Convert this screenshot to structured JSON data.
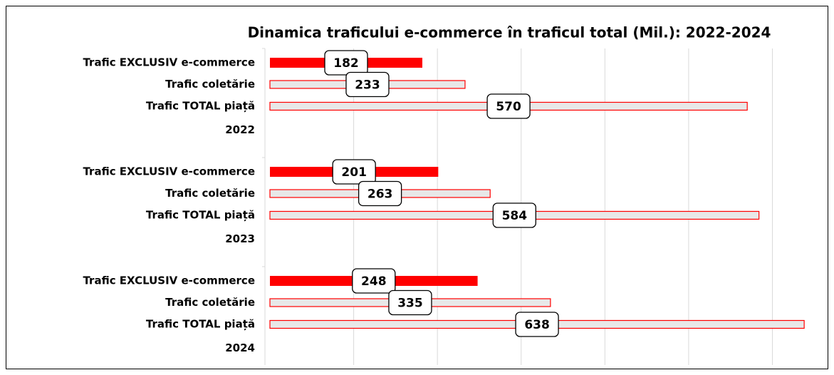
{
  "chart_data": {
    "type": "hbar",
    "title": "Dinamica traficului e-commerce în traficul total (Mil.): 2022-2024",
    "categories": [
      "2022",
      "2023",
      "2024"
    ],
    "series": [
      {
        "name": "Trafic EXCLUSIV e-commerce",
        "color": "#ff0000",
        "values": [
          182,
          201,
          248
        ]
      },
      {
        "name": "Trafic coletărie",
        "color": "#e8e8e8",
        "edge_color": "#ff0000",
        "values": [
          233,
          263,
          335
        ]
      },
      {
        "name": "Trafic TOTAL piață",
        "color": "#e8e8e8",
        "edge_color": "#ff0000",
        "values": [
          570,
          584,
          638
        ]
      }
    ],
    "xlim": [
      0,
      660
    ],
    "xticks": [
      0,
      100,
      200,
      300,
      400,
      500,
      600
    ],
    "xtick_labels": false,
    "grid": true,
    "data_labels": true
  }
}
